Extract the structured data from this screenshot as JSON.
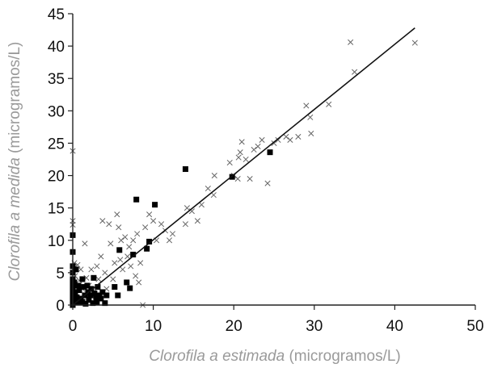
{
  "chart_data": {
    "type": "scatter",
    "title": "",
    "xlabel": {
      "italic": "Clorofila a estimada",
      "units": " (microgramos/L)"
    },
    "ylabel": {
      "italic": "Clorofila a medida",
      "units": " (microgramos/L)"
    },
    "xlim": [
      0,
      50
    ],
    "ylim": [
      0,
      45
    ],
    "xticks": [
      0,
      10,
      20,
      30,
      40,
      50
    ],
    "yticks": [
      0,
      5,
      10,
      15,
      20,
      25,
      30,
      35,
      40,
      45
    ],
    "grid": false,
    "legend": "none",
    "colors": {
      "axis": "#222222",
      "cross": "#666666",
      "square": "#000000",
      "line": "#111111",
      "title": "#9a9a9a"
    },
    "series": [
      {
        "marker": "cross",
        "points": [
          [
            0.0,
            23.8
          ],
          [
            0.0,
            13.0
          ],
          [
            0.0,
            12.4
          ],
          [
            0.2,
            6.5
          ],
          [
            0.3,
            4.5
          ],
          [
            0.6,
            6.2
          ],
          [
            0.8,
            3.8
          ],
          [
            1.0,
            5.5
          ],
          [
            1.2,
            2.5
          ],
          [
            1.5,
            9.5
          ],
          [
            1.7,
            4.2
          ],
          [
            2.0,
            3.0
          ],
          [
            2.3,
            5.5
          ],
          [
            2.6,
            2.0
          ],
          [
            3.0,
            6.0
          ],
          [
            3.2,
            4.0
          ],
          [
            3.5,
            7.5
          ],
          [
            3.7,
            13.0
          ],
          [
            4.0,
            5.0
          ],
          [
            4.2,
            2.5
          ],
          [
            4.5,
            12.5
          ],
          [
            4.7,
            9.5
          ],
          [
            5.0,
            4.0
          ],
          [
            5.2,
            6.5
          ],
          [
            5.5,
            14.0
          ],
          [
            5.7,
            12.0
          ],
          [
            5.9,
            7.0
          ],
          [
            6.0,
            10.0
          ],
          [
            6.2,
            5.5
          ],
          [
            6.5,
            10.5
          ],
          [
            6.8,
            7.5
          ],
          [
            7.0,
            9.0
          ],
          [
            7.2,
            6.0
          ],
          [
            7.5,
            10.0
          ],
          [
            7.8,
            4.5
          ],
          [
            8.0,
            11.0
          ],
          [
            8.2,
            3.5
          ],
          [
            8.4,
            6.5
          ],
          [
            8.7,
            0.0
          ],
          [
            9.0,
            12.0
          ],
          [
            9.5,
            14.0
          ],
          [
            10.0,
            13.0
          ],
          [
            10.4,
            10.0
          ],
          [
            11.0,
            12.5
          ],
          [
            11.5,
            11.5
          ],
          [
            12.0,
            10.0
          ],
          [
            12.4,
            11.0
          ],
          [
            14.0,
            12.5
          ],
          [
            14.2,
            15.0
          ],
          [
            14.8,
            14.5
          ],
          [
            15.5,
            13.0
          ],
          [
            16.0,
            15.5
          ],
          [
            16.8,
            18.0
          ],
          [
            17.5,
            17.0
          ],
          [
            17.6,
            20.0
          ],
          [
            19.5,
            22.0
          ],
          [
            20.0,
            20.0
          ],
          [
            20.5,
            19.5
          ],
          [
            20.6,
            22.8
          ],
          [
            20.8,
            23.6
          ],
          [
            21.0,
            25.2
          ],
          [
            21.5,
            22.5
          ],
          [
            22.0,
            19.5
          ],
          [
            22.5,
            24.0
          ],
          [
            23.0,
            24.5
          ],
          [
            23.5,
            25.5
          ],
          [
            24.2,
            18.8
          ],
          [
            25.0,
            25.0
          ],
          [
            25.5,
            25.5
          ],
          [
            26.5,
            26.0
          ],
          [
            27.0,
            25.5
          ],
          [
            28.0,
            26.0
          ],
          [
            29.0,
            30.8
          ],
          [
            29.5,
            29.0
          ],
          [
            29.6,
            26.5
          ],
          [
            31.8,
            31.0
          ],
          [
            34.5,
            40.6
          ],
          [
            35.0,
            36.0
          ],
          [
            42.5,
            40.5
          ]
        ]
      },
      {
        "marker": "square",
        "points": [
          [
            0.0,
            10.8
          ],
          [
            0.0,
            8.2
          ],
          [
            0.0,
            6.0
          ],
          [
            0.0,
            5.0
          ],
          [
            0.0,
            4.0
          ],
          [
            0.0,
            3.5
          ],
          [
            0.0,
            2.8
          ],
          [
            0.0,
            2.0
          ],
          [
            0.0,
            1.5
          ],
          [
            0.0,
            1.0
          ],
          [
            0.0,
            0.5
          ],
          [
            0.0,
            0.0
          ],
          [
            0.2,
            3.5
          ],
          [
            0.3,
            2.0
          ],
          [
            0.4,
            5.5
          ],
          [
            0.5,
            1.2
          ],
          [
            0.6,
            0.5
          ],
          [
            0.7,
            3.0
          ],
          [
            0.8,
            2.3
          ],
          [
            1.0,
            1.0
          ],
          [
            1.2,
            4.0
          ],
          [
            1.2,
            0.5
          ],
          [
            1.4,
            2.8
          ],
          [
            1.5,
            1.5
          ],
          [
            1.6,
            0.2
          ],
          [
            1.8,
            3.0
          ],
          [
            1.9,
            2.0
          ],
          [
            2.0,
            0.8
          ],
          [
            2.2,
            1.5
          ],
          [
            2.3,
            2.5
          ],
          [
            2.5,
            0.3
          ],
          [
            2.6,
            4.2
          ],
          [
            2.7,
            1.8
          ],
          [
            2.9,
            1.2
          ],
          [
            3.0,
            0.5
          ],
          [
            3.1,
            2.8
          ],
          [
            3.3,
            1.5
          ],
          [
            3.5,
            1.0
          ],
          [
            3.7,
            2.0
          ],
          [
            4.0,
            0.3
          ],
          [
            4.2,
            1.5
          ],
          [
            5.2,
            2.8
          ],
          [
            5.6,
            1.5
          ],
          [
            5.8,
            8.5
          ],
          [
            6.7,
            3.5
          ],
          [
            7.1,
            2.6
          ],
          [
            7.5,
            7.8
          ],
          [
            7.9,
            16.3
          ],
          [
            9.2,
            8.7
          ],
          [
            9.5,
            9.8
          ],
          [
            10.2,
            15.5
          ],
          [
            14.0,
            21.0
          ],
          [
            19.8,
            19.8
          ],
          [
            24.5,
            23.6
          ]
        ]
      }
    ],
    "fit_line": {
      "x": [
        0,
        42.5
      ],
      "y": [
        0,
        42.8
      ]
    }
  }
}
